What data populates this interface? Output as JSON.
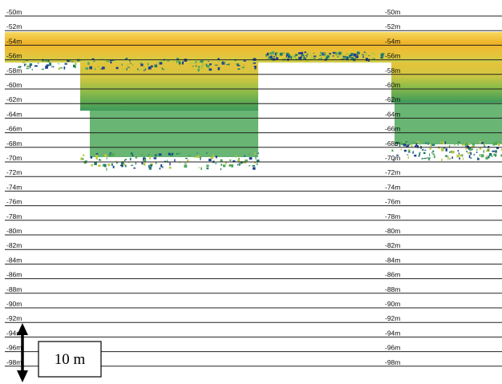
{
  "depth_labels": [
    "-50m",
    "-52m",
    "-54m",
    "-56m",
    "-58m",
    "-60m",
    "-62m",
    "-64m",
    "-66m",
    "-68m",
    "-70m",
    "-72m",
    "-74m",
    "-76m",
    "-78m",
    "-80m",
    "-82m",
    "-84m",
    "-86m",
    "-88m",
    "-90m",
    "-92m",
    "-94m",
    "-96m",
    "-98m"
  ],
  "scale_bar": {
    "label": "10 m"
  },
  "colors": {
    "surface_layer": "#e8c23a",
    "layer_core": "#f2b52a",
    "mid_signal": "#b6c93c",
    "weak_signal": "#4fa85a",
    "deep_signal": "#1f7a6a",
    "edge_signal": "#1b3f8f",
    "gridline": "#222222"
  }
}
